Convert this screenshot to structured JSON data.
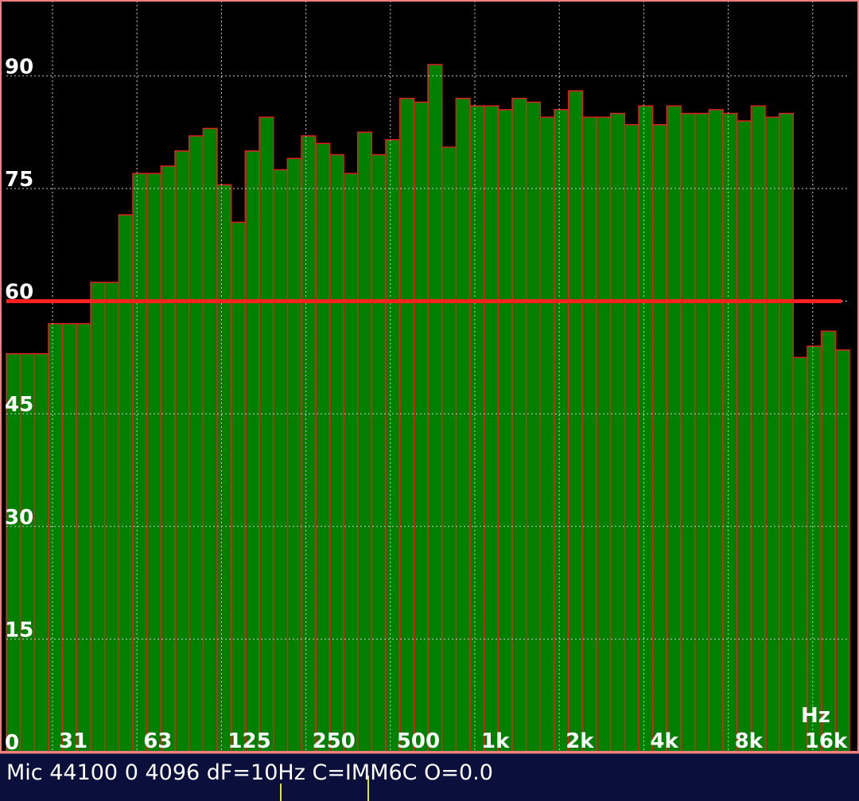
{
  "chart_data": {
    "type": "bar",
    "categories": [
      null,
      null,
      null,
      null,
      null,
      null,
      null,
      null,
      null,
      null,
      null,
      null,
      null,
      null,
      null,
      null,
      null,
      null,
      null,
      null,
      null,
      null,
      null,
      null,
      null,
      null,
      null,
      null,
      null,
      null,
      null,
      null,
      null,
      null,
      null,
      null,
      null,
      null,
      null,
      null,
      null,
      null,
      null,
      null,
      null,
      null,
      null,
      null,
      null,
      null,
      null,
      null,
      null,
      null,
      null,
      null,
      null,
      null,
      null,
      null
    ],
    "values": [
      53,
      53,
      53,
      57,
      57,
      57,
      62.5,
      62.5,
      71.5,
      77,
      77,
      78,
      80,
      82,
      83,
      75.5,
      70.5,
      80,
      84.5,
      77.5,
      79,
      82,
      81,
      79.5,
      77,
      82.5,
      79.5,
      81.5,
      87,
      86.5,
      91.5,
      80.5,
      87,
      86,
      86,
      85.5,
      87,
      86.5,
      84.5,
      85.5,
      88,
      84.5,
      84.5,
      85,
      83.5,
      86,
      83.5,
      86,
      85,
      85,
      85.5,
      85,
      84,
      86,
      84.5,
      85,
      52.5,
      54,
      56,
      53.5
    ],
    "color": "#008000",
    "edge_color": "#e02020",
    "ylim": [
      0,
      100
    ],
    "yticks": [
      0,
      15,
      30,
      45,
      60,
      75,
      90
    ],
    "grid": true,
    "xtick_labels": [
      "31",
      "63",
      "125",
      "250",
      "500",
      "1k",
      "2k",
      "4k",
      "8k",
      "16k"
    ],
    "x_unit": "Hz",
    "threshold": 60,
    "threshold_color": "#ff2020"
  },
  "status_bar": {
    "text": "Mic 44100 0 4096 dF=10Hz C=IMM6C O=0.0"
  }
}
